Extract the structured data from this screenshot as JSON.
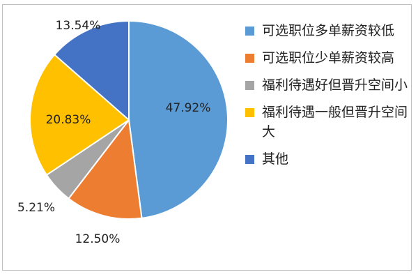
{
  "chart_data": {
    "type": "pie",
    "legend_position": "right",
    "slices": [
      {
        "label": "可选职位多单薪资较低",
        "value": 47.92,
        "value_label": "47.92%",
        "color": "#5B9BD5"
      },
      {
        "label": "可选职位少单薪资较高",
        "value": 12.5,
        "value_label": "12.50%",
        "color": "#ED7D31"
      },
      {
        "label": "福利待遇好但晋升空间小",
        "value": 5.21,
        "value_label": "5.21%",
        "color": "#A5A5A5"
      },
      {
        "label": "福利待遇一般但晋升空间大",
        "value": 20.83,
        "value_label": "20.83%",
        "color": "#FFC000"
      },
      {
        "label": "其他",
        "value": 13.54,
        "value_label": "13.54%",
        "color": "#4472C4"
      }
    ]
  }
}
